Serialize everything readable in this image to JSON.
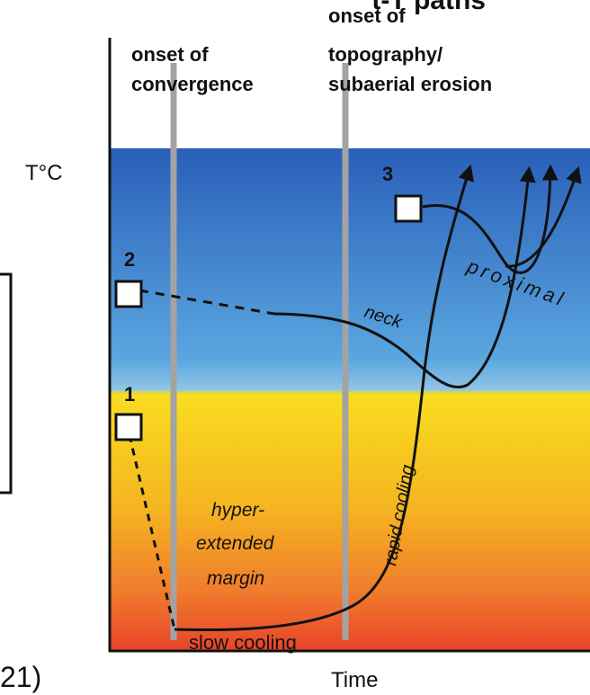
{
  "title_fragment": "t-T paths",
  "onset_convergence": [
    "onset of",
    "convergence"
  ],
  "onset_topography": [
    "onset of",
    "topography/",
    "subaerial erosion"
  ],
  "y_axis_label": "T°C",
  "x_axis_label": "Time",
  "left_edge_text": "21)",
  "start_markers": [
    "1",
    "2",
    "3"
  ],
  "path_labels": {
    "neck": "neck",
    "proximal": "proximal",
    "rapid_cooling": "rapid cooling",
    "slow_cooling": "slow cooling",
    "hyper_extended": [
      "hyper-",
      "extended",
      "margin"
    ]
  },
  "colors": {
    "cold_top": "#2a5fb8",
    "mid_blue": "#5aa6e0",
    "yellow": "#f7d21a",
    "orange": "#f09328",
    "hot_bottom": "#e7442a",
    "vertical_line": "#a3a3a3"
  }
}
